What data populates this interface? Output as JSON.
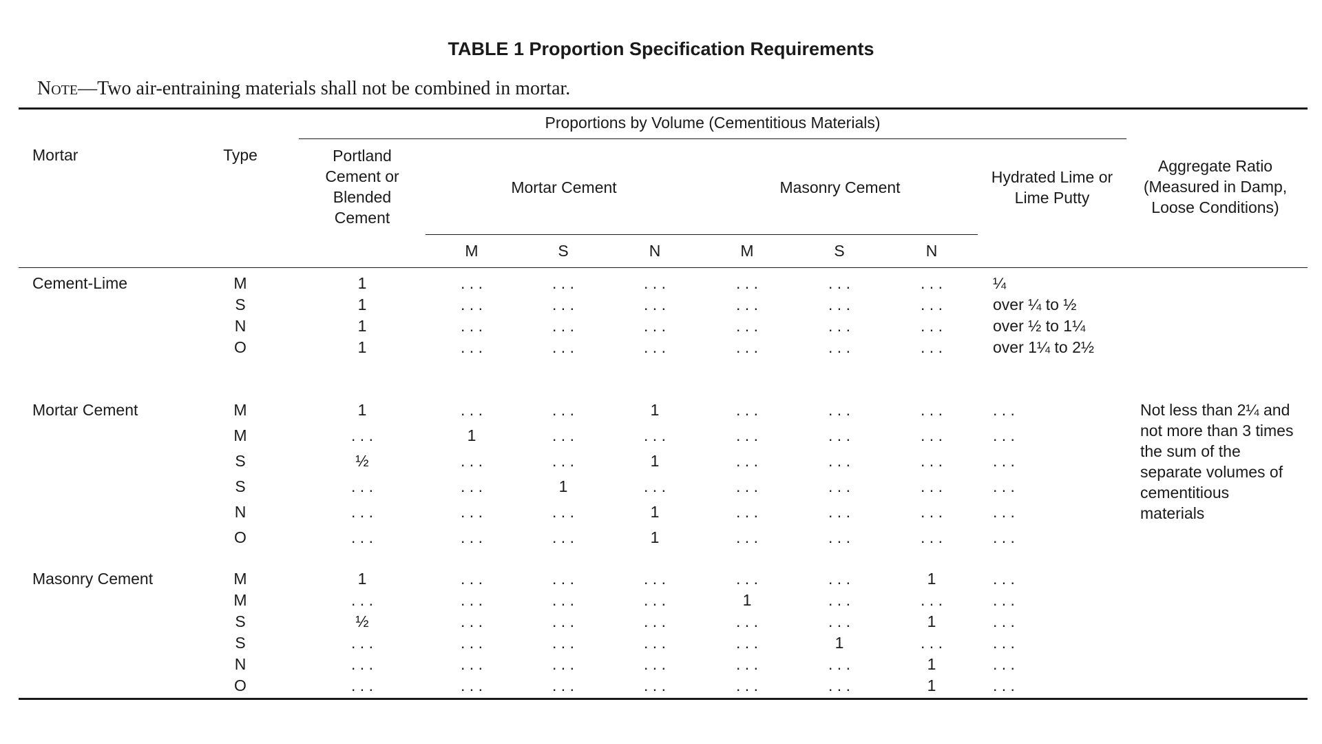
{
  "title": "TABLE 1  Proportion Specification Requirements",
  "note": {
    "label": "Note",
    "text": "—Two air-entraining materials shall not be combined in mortar."
  },
  "header": {
    "mortar": "Mortar",
    "type": "Type",
    "group": "Proportions by Volume (Cementitious Materials)",
    "portland": "Portland Cement or Blended Cement",
    "mortar_cement": "Mortar Cement",
    "masonry_cement": "Masonry Cement",
    "sub": [
      "M",
      "S",
      "N",
      "M",
      "S",
      "N"
    ],
    "lime": "Hydrated Lime or Lime Putty",
    "aggregate": "Aggregate Ratio (Measured in Damp, Loose Conditions)"
  },
  "groups": [
    {
      "name": "Cement-Lime",
      "rows": [
        [
          "M",
          "1",
          ". . .",
          ". . .",
          ". . .",
          ". . .",
          ". . .",
          ". . .",
          "¼"
        ],
        [
          "S",
          "1",
          ". . .",
          ". . .",
          ". . .",
          ". . .",
          ". . .",
          ". . .",
          "over ¼ to ½"
        ],
        [
          "N",
          "1",
          ". . .",
          ". . .",
          ". . .",
          ". . .",
          ". . .",
          ". . .",
          "over ½ to 1¼"
        ],
        [
          "O",
          "1",
          ". . .",
          ". . .",
          ". . .",
          ". . .",
          ". . .",
          ". . .",
          "over 1¼ to 2½"
        ]
      ]
    },
    {
      "name": "Mortar Cement",
      "rows": [
        [
          "M",
          "1",
          ". . .",
          ". . .",
          "1",
          ". . .",
          ". . .",
          ". . .",
          ". . ."
        ],
        [
          "M",
          ". . .",
          "1",
          ". . .",
          ". . .",
          ". . .",
          ". . .",
          ". . .",
          ". . ."
        ],
        [
          "S",
          "½",
          ". . .",
          ". . .",
          "1",
          ". . .",
          ". . .",
          ". . .",
          ". . ."
        ],
        [
          "S",
          ". . .",
          ". . .",
          "1",
          ". . .",
          ". . .",
          ". . .",
          ". . .",
          ". . ."
        ],
        [
          "N",
          ". . .",
          ". . .",
          ". . .",
          "1",
          ". . .",
          ". . .",
          ". . .",
          ". . ."
        ],
        [
          "O",
          ". . .",
          ". . .",
          ". . .",
          "1",
          ". . .",
          ". . .",
          ". . .",
          ". . ."
        ]
      ]
    },
    {
      "name": "Masonry Cement",
      "rows": [
        [
          "M",
          "1",
          ". . .",
          ". . .",
          ". . .",
          ". . .",
          ". . .",
          "1",
          ". . ."
        ],
        [
          "M",
          ". . .",
          ". . .",
          ". . .",
          ". . .",
          "1",
          ". . .",
          ". . .",
          ". . ."
        ],
        [
          "S",
          "½",
          ". . .",
          ". . .",
          ". . .",
          ". . .",
          ". . .",
          "1",
          ". . ."
        ],
        [
          "S",
          ". . .",
          ". . .",
          ". . .",
          ". . .",
          ". . .",
          "1",
          ". . .",
          ". . ."
        ],
        [
          "N",
          ". . .",
          ". . .",
          ". . .",
          ". . .",
          ". . .",
          ". . .",
          "1",
          ". . ."
        ],
        [
          "O",
          ". . .",
          ". . .",
          ". . .",
          ". . .",
          ". . .",
          ". . .",
          "1",
          ". . ."
        ]
      ]
    }
  ],
  "aggregate_note": "Not less than 2¼ and not more than 3 times the sum of the separate volumes of cementitious materials"
}
